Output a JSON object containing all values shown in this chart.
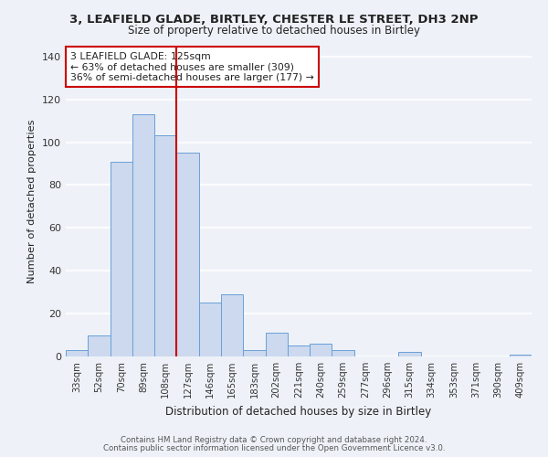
{
  "title1": "3, LEAFIELD GLADE, BIRTLEY, CHESTER LE STREET, DH3 2NP",
  "title2": "Size of property relative to detached houses in Birtley",
  "xlabel": "Distribution of detached houses by size in Birtley",
  "ylabel": "Number of detached properties",
  "bar_labels": [
    "33sqm",
    "52sqm",
    "70sqm",
    "89sqm",
    "108sqm",
    "127sqm",
    "146sqm",
    "165sqm",
    "183sqm",
    "202sqm",
    "221sqm",
    "240sqm",
    "259sqm",
    "277sqm",
    "296sqm",
    "315sqm",
    "334sqm",
    "353sqm",
    "371sqm",
    "390sqm",
    "409sqm"
  ],
  "bar_values": [
    3,
    10,
    91,
    113,
    103,
    95,
    25,
    29,
    3,
    11,
    5,
    6,
    3,
    0,
    0,
    2,
    0,
    0,
    0,
    0,
    1
  ],
  "bar_color": "#ccd9ee",
  "bar_edge_color": "#6a9fd8",
  "vline_color": "#cc0000",
  "annotation_line1": "3 LEAFIELD GLADE: 125sqm",
  "annotation_line2": "← 63% of detached houses are smaller (309)",
  "annotation_line3": "36% of semi-detached houses are larger (177) →",
  "annotation_box_color": "#ffffff",
  "annotation_box_edge_color": "#cc0000",
  "ylim": [
    0,
    145
  ],
  "yticks": [
    0,
    20,
    40,
    60,
    80,
    100,
    120,
    140
  ],
  "footnote1": "Contains HM Land Registry data © Crown copyright and database right 2024.",
  "footnote2": "Contains public sector information licensed under the Open Government Licence v3.0.",
  "bg_color": "#eef2f8",
  "grid_color": "#ffffff"
}
